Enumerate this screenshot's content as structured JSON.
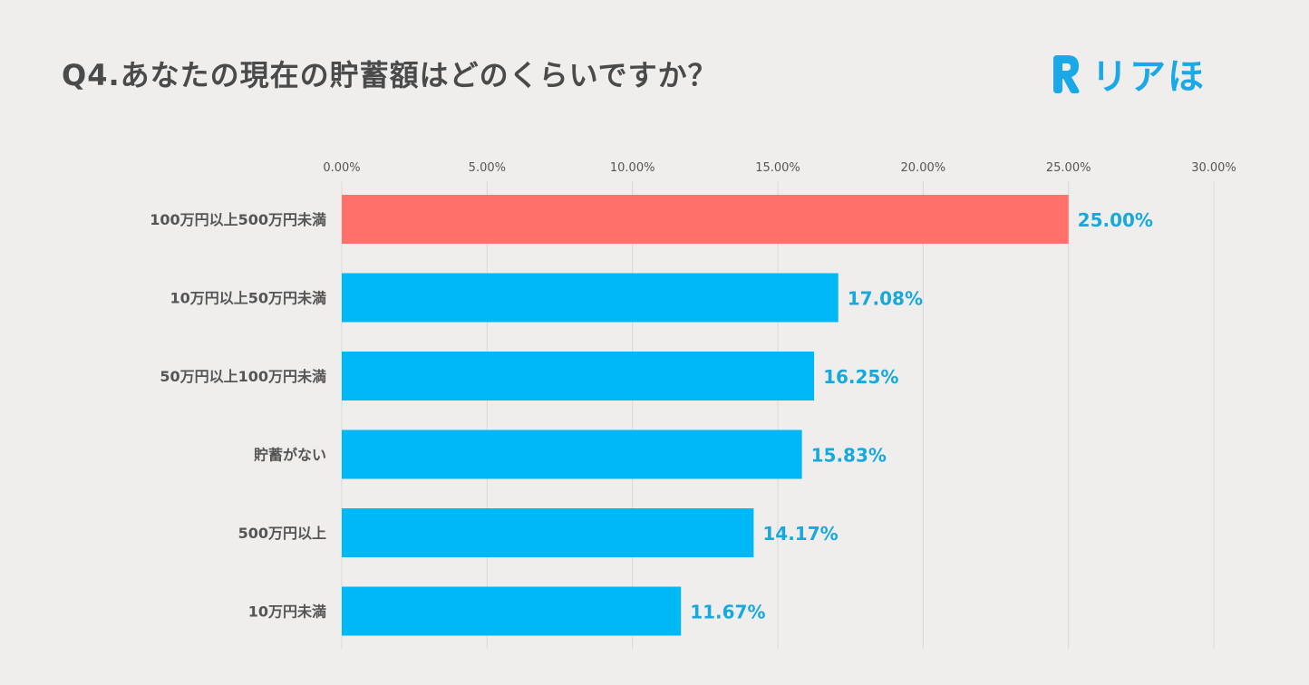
{
  "title": "Q4.あなたの現在の貯蓄額はどのくらいですか？",
  "logo": {
    "text": "リアほ",
    "icon": "r-logo-icon",
    "color": "#1aa9e6"
  },
  "colors": {
    "highlight": "#ff716a",
    "bar": "#00b8f5",
    "value_label": "#18a9dc",
    "grid": "#d9d9d9"
  },
  "chart_data": {
    "type": "bar",
    "orientation": "horizontal",
    "categories": [
      "100万円以上500万円未満",
      "10万円以上50万円未満",
      "50万円以上100万円未満",
      "貯蓄がない",
      "500万円以上",
      "10万円未満"
    ],
    "values": [
      25.0,
      17.08,
      16.25,
      15.83,
      14.17,
      11.67
    ],
    "value_labels": [
      "25.00%",
      "17.08%",
      "16.25%",
      "15.83%",
      "14.17%",
      "11.67%"
    ],
    "xlim": [
      0,
      30
    ],
    "ticks": [
      0,
      5,
      10,
      15,
      20,
      25,
      30
    ],
    "tick_labels": [
      "0.00%",
      "5.00%",
      "10.00%",
      "15.00%",
      "20.00%",
      "25.00%",
      "30.00%"
    ],
    "axis_position": "top",
    "grid": true,
    "highlight_index": 0
  }
}
